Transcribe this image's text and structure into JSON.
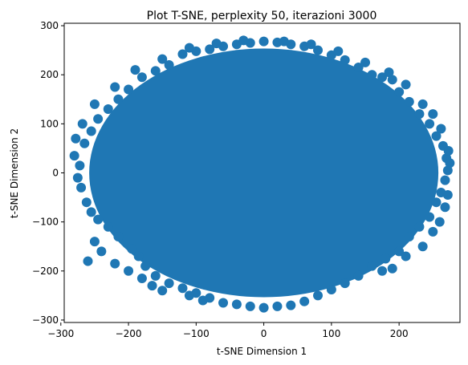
{
  "chart_data": {
    "type": "scatter",
    "title": "Plot T-SNE, perplexity 50, iterazioni 3000",
    "xlabel": "t-SNE Dimension 1",
    "ylabel": "t-SNE Dimension 2",
    "xlim": [
      -295,
      290
    ],
    "ylim": [
      -305,
      305
    ],
    "xticks": [
      -300,
      -200,
      -100,
      0,
      100,
      200
    ],
    "yticks": [
      -300,
      -200,
      -100,
      0,
      100,
      200,
      300
    ],
    "xtick_labels": [
      "−300",
      "−200",
      "−100",
      "0",
      "100",
      "200"
    ],
    "ytick_labels": [
      "−300",
      "−200",
      "−100",
      "0",
      "100",
      "200",
      "300"
    ],
    "grid": false,
    "marker_color": "#1f77b4",
    "cloud_extent": {
      "x_min": -280,
      "x_max": 275,
      "y_min": -275,
      "y_max": 270,
      "center_x": 0,
      "center_y": 0
    },
    "series": [
      {
        "points": [
          [
            -280,
            35
          ],
          [
            -272,
            15
          ],
          [
            -275,
            -10
          ],
          [
            -270,
            -30
          ],
          [
            -262,
            -60
          ],
          [
            -255,
            -80
          ],
          [
            -245,
            -95
          ],
          [
            -230,
            -110
          ],
          [
            -215,
            -130
          ],
          [
            -195,
            -155
          ],
          [
            -185,
            -170
          ],
          [
            -175,
            -190
          ],
          [
            -160,
            -210
          ],
          [
            -140,
            -225
          ],
          [
            -120,
            -235
          ],
          [
            -100,
            -245
          ],
          [
            -80,
            -255
          ],
          [
            -60,
            -265
          ],
          [
            -40,
            -268
          ],
          [
            -20,
            -272
          ],
          [
            0,
            -275
          ],
          [
            20,
            -272
          ],
          [
            40,
            -270
          ],
          [
            60,
            -262
          ],
          [
            80,
            -250
          ],
          [
            100,
            -238
          ],
          [
            120,
            -225
          ],
          [
            140,
            -210
          ],
          [
            160,
            -190
          ],
          [
            180,
            -175
          ],
          [
            190,
            -195
          ],
          [
            200,
            -160
          ],
          [
            215,
            -130
          ],
          [
            230,
            -110
          ],
          [
            245,
            -90
          ],
          [
            255,
            -60
          ],
          [
            262,
            -40
          ],
          [
            268,
            -15
          ],
          [
            272,
            5
          ],
          [
            270,
            30
          ],
          [
            265,
            55
          ],
          [
            255,
            75
          ],
          [
            245,
            100
          ],
          [
            230,
            120
          ],
          [
            215,
            145
          ],
          [
            200,
            165
          ],
          [
            190,
            190
          ],
          [
            175,
            195
          ],
          [
            160,
            200
          ],
          [
            140,
            215
          ],
          [
            120,
            230
          ],
          [
            100,
            240
          ],
          [
            80,
            250
          ],
          [
            60,
            258
          ],
          [
            40,
            262
          ],
          [
            20,
            266
          ],
          [
            0,
            268
          ],
          [
            -20,
            265
          ],
          [
            -40,
            262
          ],
          [
            -60,
            258
          ],
          [
            -80,
            252
          ],
          [
            -100,
            248
          ],
          [
            -120,
            242
          ],
          [
            -140,
            220
          ],
          [
            -160,
            208
          ],
          [
            -180,
            195
          ],
          [
            -200,
            170
          ],
          [
            -215,
            150
          ],
          [
            -230,
            130
          ],
          [
            -245,
            110
          ],
          [
            -255,
            85
          ],
          [
            -265,
            60
          ],
          [
            -260,
            -180
          ],
          [
            -250,
            -140
          ],
          [
            -240,
            -160
          ],
          [
            -220,
            -185
          ],
          [
            -200,
            -200
          ],
          [
            -180,
            -215
          ],
          [
            -165,
            -230
          ],
          [
            -150,
            -240
          ],
          [
            -110,
            -250
          ],
          [
            -90,
            -260
          ],
          [
            175,
            -200
          ],
          [
            210,
            -170
          ],
          [
            235,
            -150
          ],
          [
            250,
            -120
          ],
          [
            260,
            -100
          ],
          [
            268,
            -70
          ],
          [
            272,
            -45
          ],
          [
            275,
            20
          ],
          [
            273,
            45
          ],
          [
            262,
            90
          ],
          [
            250,
            120
          ],
          [
            235,
            140
          ],
          [
            210,
            180
          ],
          [
            185,
            205
          ],
          [
            150,
            225
          ],
          [
            110,
            248
          ],
          [
            70,
            262
          ],
          [
            30,
            268
          ],
          [
            -30,
            270
          ],
          [
            -70,
            264
          ],
          [
            -110,
            255
          ],
          [
            -150,
            232
          ],
          [
            -190,
            210
          ],
          [
            -220,
            175
          ],
          [
            -250,
            140
          ],
          [
            -268,
            100
          ],
          [
            -278,
            70
          ]
        ]
      }
    ]
  }
}
